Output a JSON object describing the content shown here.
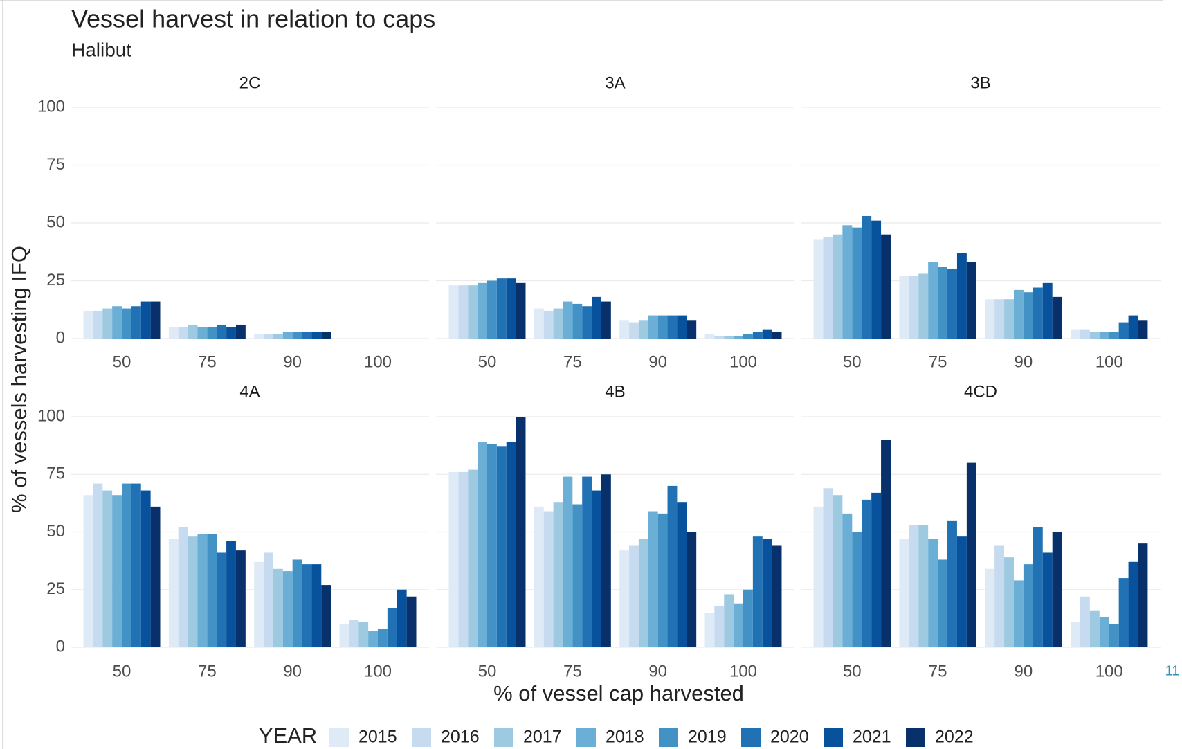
{
  "chart_data": {
    "type": "bar",
    "title": "Vessel harvest in relation to caps",
    "subtitle": "Halibut",
    "x_label": "% of vessel cap harvested",
    "y_label": "% of vessels harvesting IFQ",
    "legend_title": "YEAR",
    "page_number": "11",
    "facets": [
      "2C",
      "3A",
      "3B",
      "4A",
      "4B",
      "4CD"
    ],
    "categories": [
      "50",
      "75",
      "90",
      "100"
    ],
    "ylim": [
      0,
      100
    ],
    "yticks": [
      0,
      25,
      50,
      75,
      100
    ],
    "grid": true,
    "series": [
      {
        "name": "2015",
        "color": "#deebf7",
        "values": [
          [
            12,
            5,
            2,
            0
          ],
          [
            23,
            13,
            8,
            2
          ],
          [
            43,
            27,
            17,
            4
          ],
          [
            66,
            47,
            37,
            10
          ],
          [
            76,
            61,
            42,
            15
          ],
          [
            61,
            47,
            34,
            11
          ]
        ]
      },
      {
        "name": "2016",
        "color": "#c6dbef",
        "values": [
          [
            12,
            5,
            2,
            0
          ],
          [
            23,
            12,
            7,
            1
          ],
          [
            44,
            27,
            17,
            4
          ],
          [
            71,
            52,
            41,
            12
          ],
          [
            76,
            59,
            44,
            18
          ],
          [
            69,
            53,
            44,
            22
          ]
        ]
      },
      {
        "name": "2017",
        "color": "#9ecae1",
        "values": [
          [
            13,
            6,
            2,
            0
          ],
          [
            23,
            13,
            8,
            1
          ],
          [
            45,
            28,
            17,
            3
          ],
          [
            68,
            48,
            34,
            11
          ],
          [
            77,
            63,
            47,
            23
          ],
          [
            66,
            53,
            39,
            16
          ]
        ]
      },
      {
        "name": "2018",
        "color": "#6baed6",
        "values": [
          [
            14,
            5,
            3,
            0
          ],
          [
            24,
            16,
            10,
            1
          ],
          [
            49,
            33,
            21,
            3
          ],
          [
            66,
            49,
            33,
            7
          ],
          [
            89,
            74,
            59,
            19
          ],
          [
            58,
            47,
            29,
            13
          ]
        ]
      },
      {
        "name": "2019",
        "color": "#4292c6",
        "values": [
          [
            13,
            5,
            3,
            0
          ],
          [
            25,
            15,
            10,
            2
          ],
          [
            48,
            31,
            20,
            3
          ],
          [
            71,
            49,
            38,
            8
          ],
          [
            88,
            62,
            58,
            25
          ],
          [
            50,
            38,
            36,
            10
          ]
        ]
      },
      {
        "name": "2020",
        "color": "#2171b5",
        "values": [
          [
            14,
            6,
            3,
            0
          ],
          [
            26,
            14,
            10,
            3
          ],
          [
            53,
            30,
            22,
            7
          ],
          [
            71,
            41,
            36,
            17
          ],
          [
            87,
            74,
            70,
            48
          ],
          [
            64,
            55,
            52,
            30
          ]
        ]
      },
      {
        "name": "2021",
        "color": "#08519c",
        "values": [
          [
            16,
            5,
            3,
            0
          ],
          [
            26,
            18,
            10,
            4
          ],
          [
            51,
            37,
            24,
            10
          ],
          [
            68,
            46,
            36,
            25
          ],
          [
            89,
            68,
            63,
            47
          ],
          [
            67,
            48,
            41,
            37
          ]
        ]
      },
      {
        "name": "2022",
        "color": "#08306b",
        "values": [
          [
            16,
            6,
            3,
            0
          ],
          [
            24,
            16,
            8,
            3
          ],
          [
            45,
            33,
            18,
            8
          ],
          [
            61,
            42,
            27,
            22
          ],
          [
            100,
            75,
            50,
            44
          ],
          [
            90,
            80,
            50,
            45
          ]
        ]
      }
    ]
  }
}
